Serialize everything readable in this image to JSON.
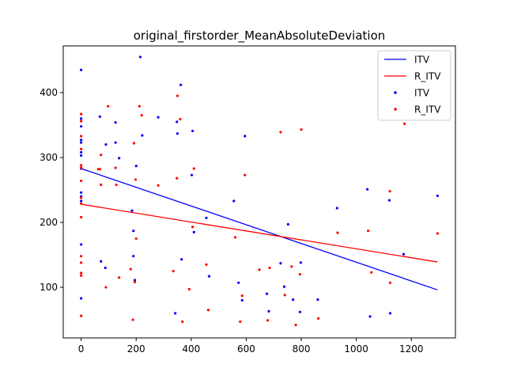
{
  "chart_data": {
    "type": "scatter",
    "title": "original_firstorder_MeanAbsoluteDeviation",
    "xlabel": "",
    "ylabel": "",
    "xlim": [
      -65,
      1360
    ],
    "ylim": [
      22,
      472
    ],
    "xticks": [
      0,
      200,
      400,
      600,
      800,
      1000,
      1200
    ],
    "yticks": [
      100,
      200,
      300,
      400
    ],
    "grid": false,
    "legend_position": "top-right",
    "legend": [
      {
        "label": "ITV",
        "kind": "line",
        "color": "#0000ff"
      },
      {
        "label": "R_ITV",
        "kind": "line",
        "color": "#ff0000"
      },
      {
        "label": "ITV",
        "kind": "marker",
        "color": "#0000ff"
      },
      {
        "label": "R_ITV",
        "kind": "marker",
        "color": "#ff0000"
      }
    ],
    "lines": [
      {
        "name": "ITV",
        "color": "#0000ff",
        "x": [
          0,
          1295
        ],
        "y": [
          283,
          96
        ]
      },
      {
        "name": "R_ITV",
        "color": "#ff0000",
        "x": [
          0,
          1295
        ],
        "y": [
          228,
          139
        ]
      }
    ],
    "series": [
      {
        "name": "ITV",
        "color": "#0000ff",
        "points": [
          [
            0,
            435
          ],
          [
            0,
            360
          ],
          [
            0,
            348
          ],
          [
            0,
            327
          ],
          [
            0,
            323
          ],
          [
            0,
            308
          ],
          [
            0,
            303
          ],
          [
            0,
            283
          ],
          [
            0,
            246
          ],
          [
            0,
            240
          ],
          [
            0,
            233
          ],
          [
            0,
            166
          ],
          [
            0,
            83
          ],
          [
            68,
            363
          ],
          [
            90,
            320
          ],
          [
            125,
            354
          ],
          [
            125,
            323
          ],
          [
            138,
            299
          ],
          [
            185,
            218
          ],
          [
            190,
            187
          ],
          [
            190,
            148
          ],
          [
            195,
            111
          ],
          [
            200,
            287
          ],
          [
            215,
            455
          ],
          [
            222,
            334
          ],
          [
            280,
            362
          ],
          [
            342,
            60
          ],
          [
            348,
            355
          ],
          [
            350,
            337
          ],
          [
            362,
            412
          ],
          [
            365,
            143
          ],
          [
            402,
            273
          ],
          [
            405,
            341
          ],
          [
            410,
            185
          ],
          [
            455,
            207
          ],
          [
            465,
            117
          ],
          [
            555,
            233
          ],
          [
            572,
            107
          ],
          [
            585,
            80
          ],
          [
            595,
            333
          ],
          [
            675,
            90
          ],
          [
            682,
            63
          ],
          [
            725,
            137
          ],
          [
            738,
            101
          ],
          [
            752,
            197
          ],
          [
            770,
            81
          ],
          [
            795,
            62
          ],
          [
            798,
            138
          ],
          [
            860,
            81
          ],
          [
            930,
            222
          ],
          [
            1040,
            251
          ],
          [
            1050,
            55
          ],
          [
            1120,
            234
          ],
          [
            1123,
            60
          ],
          [
            1172,
            151
          ],
          [
            1295,
            241
          ],
          [
            72,
            140
          ],
          [
            88,
            130
          ]
        ]
      },
      {
        "name": "R_ITV",
        "color": "#ff0000",
        "points": [
          [
            0,
            367
          ],
          [
            0,
            356
          ],
          [
            0,
            333
          ],
          [
            0,
            313
          ],
          [
            0,
            288
          ],
          [
            0,
            284
          ],
          [
            0,
            264
          ],
          [
            0,
            238
          ],
          [
            0,
            229
          ],
          [
            0,
            208
          ],
          [
            0,
            148
          ],
          [
            0,
            138
          ],
          [
            0,
            122
          ],
          [
            0,
            118
          ],
          [
            0,
            56
          ],
          [
            68,
            282
          ],
          [
            72,
            304
          ],
          [
            72,
            258
          ],
          [
            90,
            100
          ],
          [
            98,
            379
          ],
          [
            125,
            284
          ],
          [
            128,
            258
          ],
          [
            138,
            115
          ],
          [
            180,
            128
          ],
          [
            188,
            50
          ],
          [
            192,
            322
          ],
          [
            195,
            108
          ],
          [
            198,
            266
          ],
          [
            200,
            175
          ],
          [
            212,
            379
          ],
          [
            220,
            365
          ],
          [
            280,
            257
          ],
          [
            335,
            125
          ],
          [
            348,
            268
          ],
          [
            350,
            395
          ],
          [
            360,
            359
          ],
          [
            368,
            47
          ],
          [
            393,
            97
          ],
          [
            405,
            193
          ],
          [
            410,
            283
          ],
          [
            455,
            135
          ],
          [
            462,
            65
          ],
          [
            560,
            177
          ],
          [
            578,
            47
          ],
          [
            585,
            87
          ],
          [
            595,
            273
          ],
          [
            648,
            127
          ],
          [
            678,
            49
          ],
          [
            685,
            130
          ],
          [
            725,
            339
          ],
          [
            740,
            88
          ],
          [
            765,
            132
          ],
          [
            780,
            42
          ],
          [
            795,
            120
          ],
          [
            800,
            343
          ],
          [
            862,
            52
          ],
          [
            932,
            184
          ],
          [
            1043,
            187
          ],
          [
            1055,
            123
          ],
          [
            1122,
            248
          ],
          [
            1123,
            107
          ],
          [
            1175,
            352
          ],
          [
            1295,
            183
          ],
          [
            62,
            282
          ]
        ]
      }
    ]
  }
}
